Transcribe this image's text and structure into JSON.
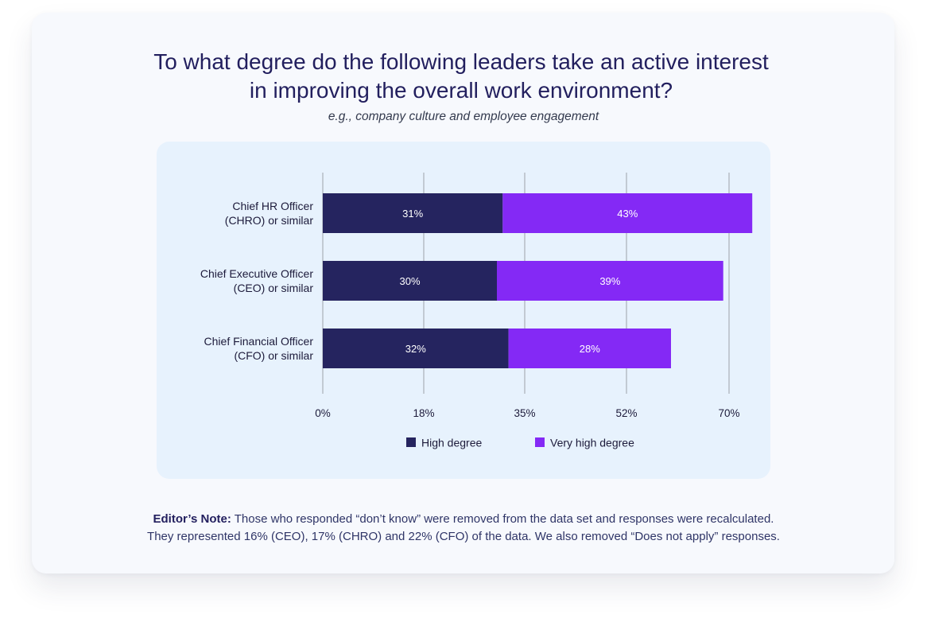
{
  "title_line1": "To what degree do the following leaders take an active interest",
  "title_line2": "in improving the overall work environment?",
  "subtitle": "e.g., company culture and employee engagement",
  "note": {
    "label": "Editor’s Note:",
    "line1": " Those who responded “don’t know” were removed from the data set and responses were recalculated.",
    "line2": "They represented 16% (CEO), 17% (CHRO) and 22% (CFO) of the data. We also removed “Does not apply” responses."
  },
  "colors": {
    "high": "#25245f",
    "very_high": "#8429f5",
    "grid": "#c2cad3",
    "text": "#1c1a3a"
  },
  "chart_data": {
    "type": "bar",
    "orientation": "horizontal",
    "stacked": true,
    "categories": [
      [
        "Chief HR Officer",
        "(CHRO) or similar"
      ],
      [
        "Chief Executive Officer",
        "(CEO) or similar"
      ],
      [
        "Chief Financial Officer",
        "(CFO) or similar"
      ]
    ],
    "series": [
      {
        "name": "High degree",
        "values": [
          31,
          30,
          32
        ],
        "labels": [
          "31%",
          "30%",
          "32%"
        ],
        "color": "#25245f"
      },
      {
        "name": "Very high degree",
        "values": [
          43,
          39,
          28
        ],
        "labels": [
          "43%",
          "39%",
          "28%"
        ],
        "color": "#8429f5"
      }
    ],
    "xlim": [
      0,
      70
    ],
    "x_ticks": [
      0,
      17.5,
      35,
      52.5,
      70
    ],
    "x_tick_labels": [
      "0%",
      "18%",
      "35%",
      "52%",
      "70%"
    ],
    "grid": true,
    "legend_position": "bottom-center"
  }
}
